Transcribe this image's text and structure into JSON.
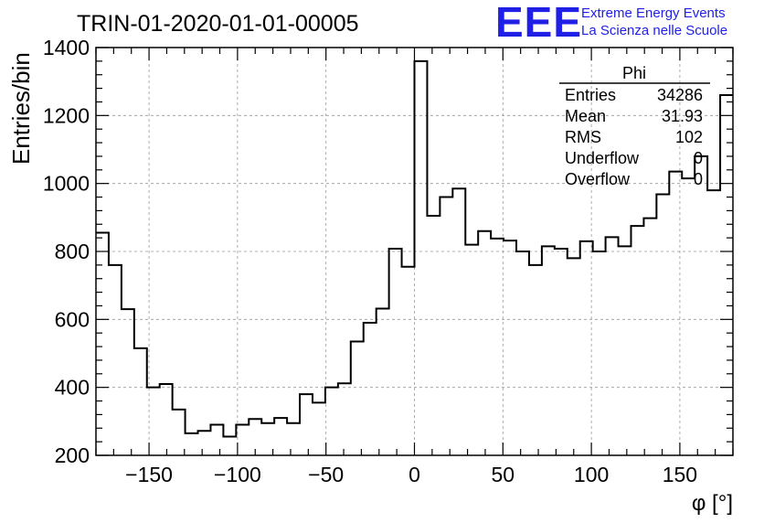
{
  "header": {
    "title": "TRIN-01-2020-01-01-00005",
    "logo_text": "EEE",
    "logo_line1": "Extreme Energy Events",
    "logo_line2": "La Scienza nelle Scuole",
    "logo_color": "#1f1fe6"
  },
  "stats_box": {
    "name": "Phi",
    "rows": [
      {
        "label": "Entries",
        "value": "34286"
      },
      {
        "label": "Mean",
        "value": "31.93"
      },
      {
        "label": "RMS",
        "value": "102"
      },
      {
        "label": "Underflow",
        "value": "0"
      },
      {
        "label": "Overflow",
        "value": "0"
      }
    ]
  },
  "chart_data": {
    "type": "histogram",
    "title": "TRIN-01-2020-01-01-00005",
    "xlabel": "φ [°]",
    "ylabel": "Entries/bin",
    "xlim": [
      -180,
      180
    ],
    "ylim": [
      200,
      1400
    ],
    "bin_width": 7.2,
    "x_ticks": [
      -150,
      -100,
      -50,
      0,
      50,
      100,
      150
    ],
    "x_tick_labels": [
      "−150",
      "−100",
      "−50",
      "0",
      "50",
      "100",
      "150"
    ],
    "y_ticks": [
      200,
      400,
      600,
      800,
      1000,
      1200,
      1400
    ],
    "y_tick_labels": [
      "200",
      "400",
      "600",
      "800",
      "1000",
      "1200",
      "1400"
    ],
    "grid": true,
    "line_color": "#000000",
    "values": [
      855,
      760,
      630,
      515,
      400,
      410,
      335,
      265,
      272,
      290,
      255,
      290,
      307,
      295,
      310,
      295,
      380,
      355,
      400,
      412,
      535,
      590,
      632,
      808,
      755,
      1360,
      905,
      960,
      985,
      820,
      860,
      838,
      832,
      800,
      760,
      815,
      808,
      780,
      830,
      800,
      842,
      815,
      875,
      898,
      968,
      1035,
      1015,
      1080,
      980,
      1260
    ]
  }
}
